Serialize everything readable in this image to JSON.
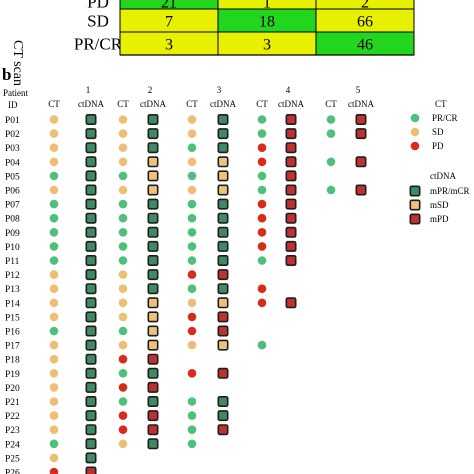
{
  "colors": {
    "cell_yellow": "#e6f000",
    "cell_green": "#22d61e",
    "dot_green": "#4dc07a",
    "dot_orange": "#edbf74",
    "dot_red": "#d92b1c",
    "sq_green_fill": "#3f8a62",
    "sq_orange_fill": "#eec27d",
    "sq_red_fill": "#bf3030",
    "sq_border": "#1e1e1e"
  },
  "panel_a": {
    "side_label": "CT scan",
    "rows": [
      {
        "label": "PD",
        "cells": [
          {
            "value": "21",
            "color": "green"
          },
          {
            "value": "1",
            "color": "yellow"
          },
          {
            "value": "2",
            "color": "yellow"
          }
        ]
      },
      {
        "label": "SD",
        "cells": [
          {
            "value": "7",
            "color": "yellow"
          },
          {
            "value": "18",
            "color": "green"
          },
          {
            "value": "66",
            "color": "yellow"
          }
        ]
      },
      {
        "label": "PR/CR",
        "cells": [
          {
            "value": "3",
            "color": "yellow"
          },
          {
            "value": "3",
            "color": "yellow"
          },
          {
            "value": "46",
            "color": "green"
          }
        ]
      }
    ]
  },
  "panel_b": {
    "panel_letter": "b",
    "header_line1": "Patient",
    "header_line2": "ID",
    "cycles": [
      {
        "number": "1",
        "ct_label": "CT",
        "ctdna_label": "ctDNA"
      },
      {
        "number": "2",
        "ct_label": "CT",
        "ctdna_label": "ctDNA"
      },
      {
        "number": "3",
        "ct_label": "CT",
        "ctdna_label": "ctDNA"
      },
      {
        "number": "4",
        "ct_label": "CT",
        "ctdna_label": "ctDNA"
      },
      {
        "number": "5",
        "ct_label": "CT",
        "ctdna_label": "ctDNA"
      }
    ],
    "patients": [
      {
        "id": "P01",
        "marks": [
          "o",
          "g",
          "o",
          "g",
          "o",
          "g",
          "g",
          "r",
          "g",
          "r"
        ]
      },
      {
        "id": "P02",
        "marks": [
          "o",
          "g",
          "o",
          "g",
          "o",
          "g",
          "g",
          "r",
          "g",
          "r"
        ]
      },
      {
        "id": "P03",
        "marks": [
          "o",
          "g",
          "o",
          "g",
          "g",
          "g",
          "r",
          "r",
          "",
          ""
        ]
      },
      {
        "id": "P04",
        "marks": [
          "o",
          "g",
          "o",
          "o",
          "o",
          "o",
          "r",
          "r",
          "g",
          "r"
        ]
      },
      {
        "id": "P05",
        "marks": [
          "g",
          "g",
          "g",
          "o",
          "g",
          "o",
          "g",
          "r",
          "",
          ""
        ]
      },
      {
        "id": "P06",
        "marks": [
          "o",
          "g",
          "o",
          "o",
          "o",
          "o",
          "g",
          "r",
          "g",
          "r"
        ]
      },
      {
        "id": "P07",
        "marks": [
          "g",
          "g",
          "g",
          "g",
          "g",
          "g",
          "r",
          "r",
          "",
          ""
        ]
      },
      {
        "id": "P08",
        "marks": [
          "g",
          "g",
          "g",
          "g",
          "g",
          "g",
          "r",
          "r",
          "",
          ""
        ]
      },
      {
        "id": "P09",
        "marks": [
          "g",
          "g",
          "g",
          "g",
          "g",
          "g",
          "r",
          "r",
          "",
          ""
        ]
      },
      {
        "id": "P10",
        "marks": [
          "g",
          "g",
          "g",
          "g",
          "g",
          "g",
          "r",
          "r",
          "",
          ""
        ]
      },
      {
        "id": "P11",
        "marks": [
          "g",
          "g",
          "g",
          "g",
          "g",
          "g",
          "g",
          "r",
          "",
          ""
        ]
      },
      {
        "id": "P12",
        "marks": [
          "o",
          "g",
          "o",
          "g",
          "r",
          "r",
          "",
          "",
          "",
          ""
        ]
      },
      {
        "id": "P13",
        "marks": [
          "o",
          "g",
          "o",
          "g",
          "g",
          "g",
          "r",
          "",
          "",
          ""
        ]
      },
      {
        "id": "P14",
        "marks": [
          "o",
          "g",
          "o",
          "o",
          "o",
          "o",
          "r",
          "r",
          "",
          ""
        ]
      },
      {
        "id": "P15",
        "marks": [
          "o",
          "g",
          "o",
          "o",
          "r",
          "r",
          "",
          "",
          "",
          ""
        ]
      },
      {
        "id": "P16",
        "marks": [
          "g",
          "g",
          "g",
          "o",
          "r",
          "r",
          "",
          "",
          "",
          ""
        ]
      },
      {
        "id": "P17",
        "marks": [
          "o",
          "g",
          "o",
          "o",
          "o",
          "o",
          "g",
          "",
          "",
          ""
        ]
      },
      {
        "id": "P18",
        "marks": [
          "o",
          "g",
          "r",
          "r",
          "",
          "",
          "",
          "",
          "",
          ""
        ]
      },
      {
        "id": "P19",
        "marks": [
          "o",
          "g",
          "g",
          "g",
          "r",
          "r",
          "",
          "",
          "",
          ""
        ]
      },
      {
        "id": "P20",
        "marks": [
          "o",
          "g",
          "r",
          "r",
          "",
          "",
          "",
          "",
          "",
          ""
        ]
      },
      {
        "id": "P21",
        "marks": [
          "o",
          "g",
          "g",
          "g",
          "g",
          "g",
          "",
          "",
          "",
          ""
        ]
      },
      {
        "id": "P22",
        "marks": [
          "o",
          "g",
          "r",
          "r",
          "g",
          "g",
          "",
          "",
          "",
          ""
        ]
      },
      {
        "id": "P23",
        "marks": [
          "o",
          "g",
          "r",
          "r",
          "g",
          "r",
          "",
          "",
          "",
          ""
        ]
      },
      {
        "id": "P24",
        "marks": [
          "g",
          "g",
          "o",
          "g",
          "g",
          "",
          "",
          "",
          "",
          ""
        ]
      },
      {
        "id": "P25",
        "marks": [
          "o",
          "g",
          "",
          "",
          "",
          "",
          "",
          "",
          "",
          ""
        ]
      },
      {
        "id": "P26",
        "marks": [
          "r",
          "r",
          "",
          "",
          "",
          "",
          "",
          "",
          "",
          ""
        ]
      }
    ],
    "legend": {
      "ct_title": "CT",
      "ct_items": [
        {
          "label": "PR/CR",
          "color": "green"
        },
        {
          "label": "SD",
          "color": "orange"
        },
        {
          "label": "PD",
          "color": "red"
        }
      ],
      "ctdna_title": "ctDNA",
      "ctdna_items": [
        {
          "label": "mPR/mCR",
          "color": "green"
        },
        {
          "label": "mSD",
          "color": "orange"
        },
        {
          "label": "mPD",
          "color": "red"
        }
      ]
    }
  }
}
